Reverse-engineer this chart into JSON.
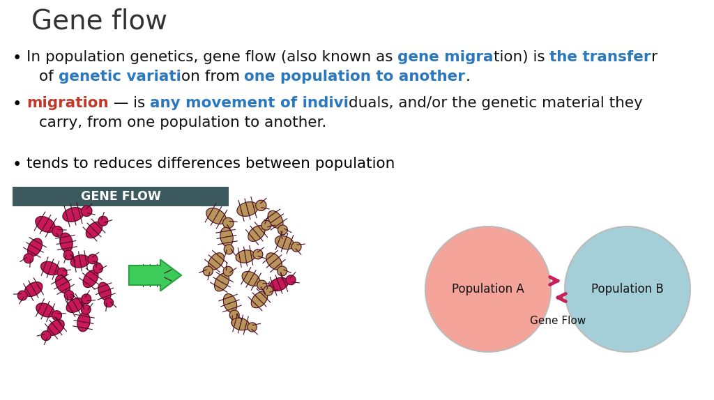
{
  "title": "Gene flow",
  "background_color": "#ffffff",
  "title_color": "#333333",
  "title_fontsize": 28,
  "bullet3": "tends to reduces differences between population",
  "bullet3_color": "#000000",
  "banner_text": "GENE FLOW",
  "banner_bg": "#3d5a5e",
  "banner_text_color": "#ffffff",
  "pop_a_label": "Population A",
  "pop_b_label": "Population B",
  "gene_flow_label": "Gene Flow",
  "pop_a_color": "#f5a49a",
  "pop_b_color": "#a4cfd8",
  "arrow_color": "#c8215a",
  "font_size_body": 15.5,
  "font_size_banner": 13,
  "font_size_pop": 12
}
